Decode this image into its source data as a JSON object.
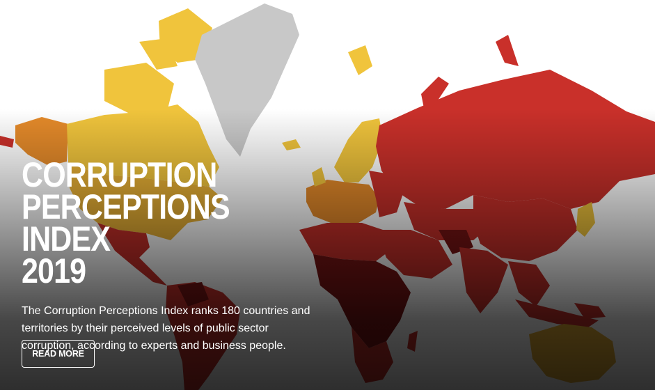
{
  "hero": {
    "title_lines": [
      "CORRUPTION",
      "PERCEPTIONS INDEX",
      "2019"
    ],
    "description": "The Corruption Perceptions Index ranks 180 countries and territories by their perceived levels of public sector corruption, according to experts and business people.",
    "button_label": "READ MORE"
  },
  "map": {
    "colors": {
      "clean": "#f0c43c",
      "moderate": "#e48a2a",
      "high": "#c9302a",
      "very_high": "#7a1414",
      "no_data": "#c8c8c8",
      "ocean": "#ffffff"
    }
  }
}
